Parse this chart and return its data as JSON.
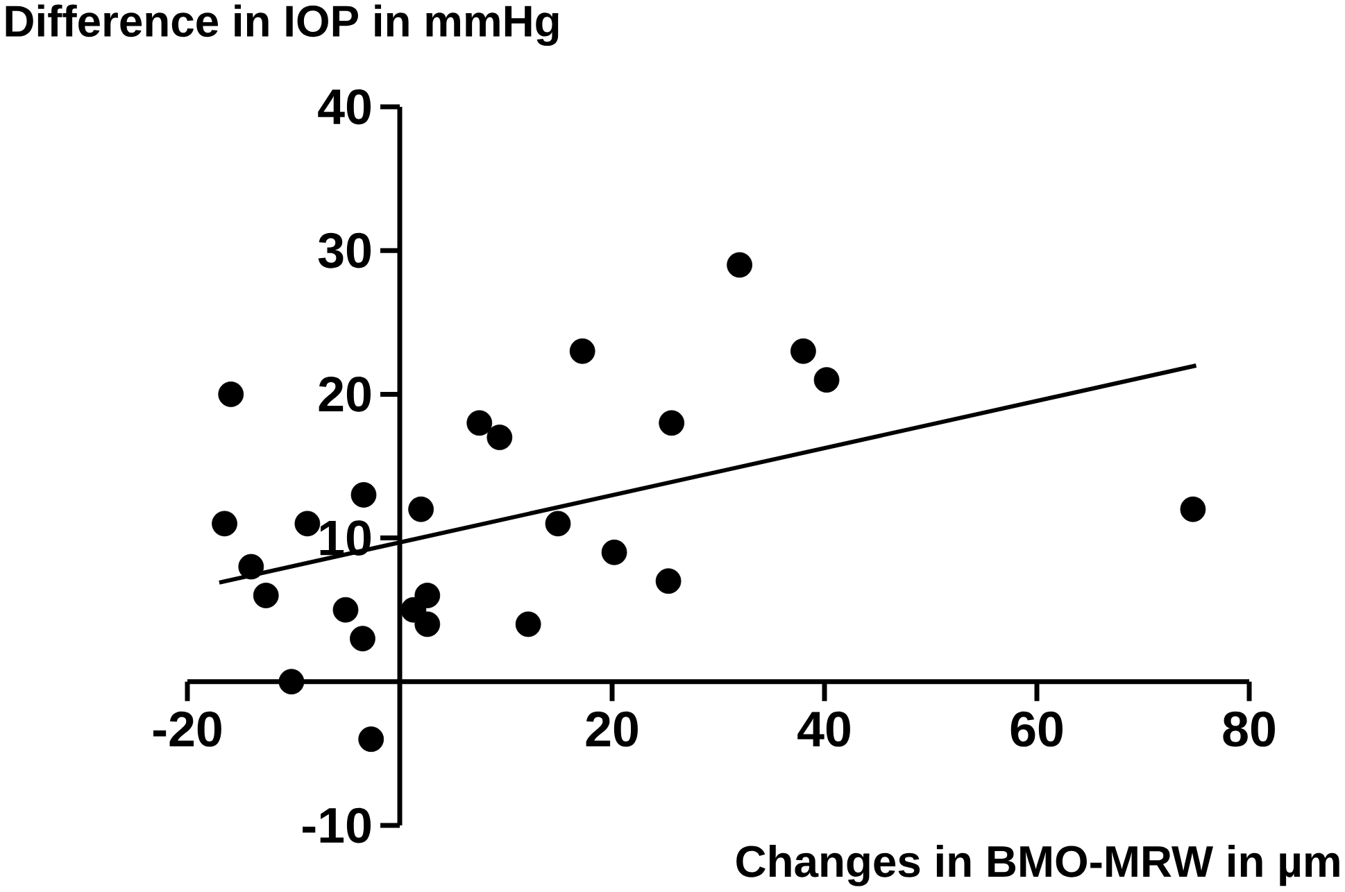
{
  "chart_data": {
    "type": "scatter",
    "xlabel": "Changes in BMO-MRW in µm",
    "ylabel": "Difference in IOP  in mmHg",
    "xlim": [
      -20,
      80
    ],
    "xticks": [
      -20,
      20,
      40,
      60,
      80
    ],
    "ylim": [
      -10,
      40
    ],
    "yticks": [
      -10,
      10,
      20,
      30,
      40
    ],
    "marker": "circle",
    "series": [
      {
        "color": "#000000",
        "x": [
          -16.5,
          -15.9,
          -14.0,
          -12.6,
          -10.2,
          -8.7,
          -5.1,
          -3.5,
          -3.4,
          -2.7,
          1.3,
          2.0,
          2.6,
          2.6,
          7.5,
          9.4,
          12.1,
          14.9,
          17.2,
          20.2,
          25.3,
          25.6,
          32.0,
          38.0,
          40.2,
          74.7
        ],
        "values": [
          11,
          20,
          8,
          6,
          0,
          11,
          5,
          3,
          13,
          -4,
          5,
          12,
          6,
          4,
          18,
          17,
          4,
          11,
          23,
          9,
          7,
          18,
          29,
          23,
          21,
          12
        ]
      },
      {
        "type": "line",
        "marker": "none",
        "color": "#000000",
        "x": [
          -17,
          75
        ],
        "values": [
          6.9,
          22.0
        ]
      }
    ]
  }
}
